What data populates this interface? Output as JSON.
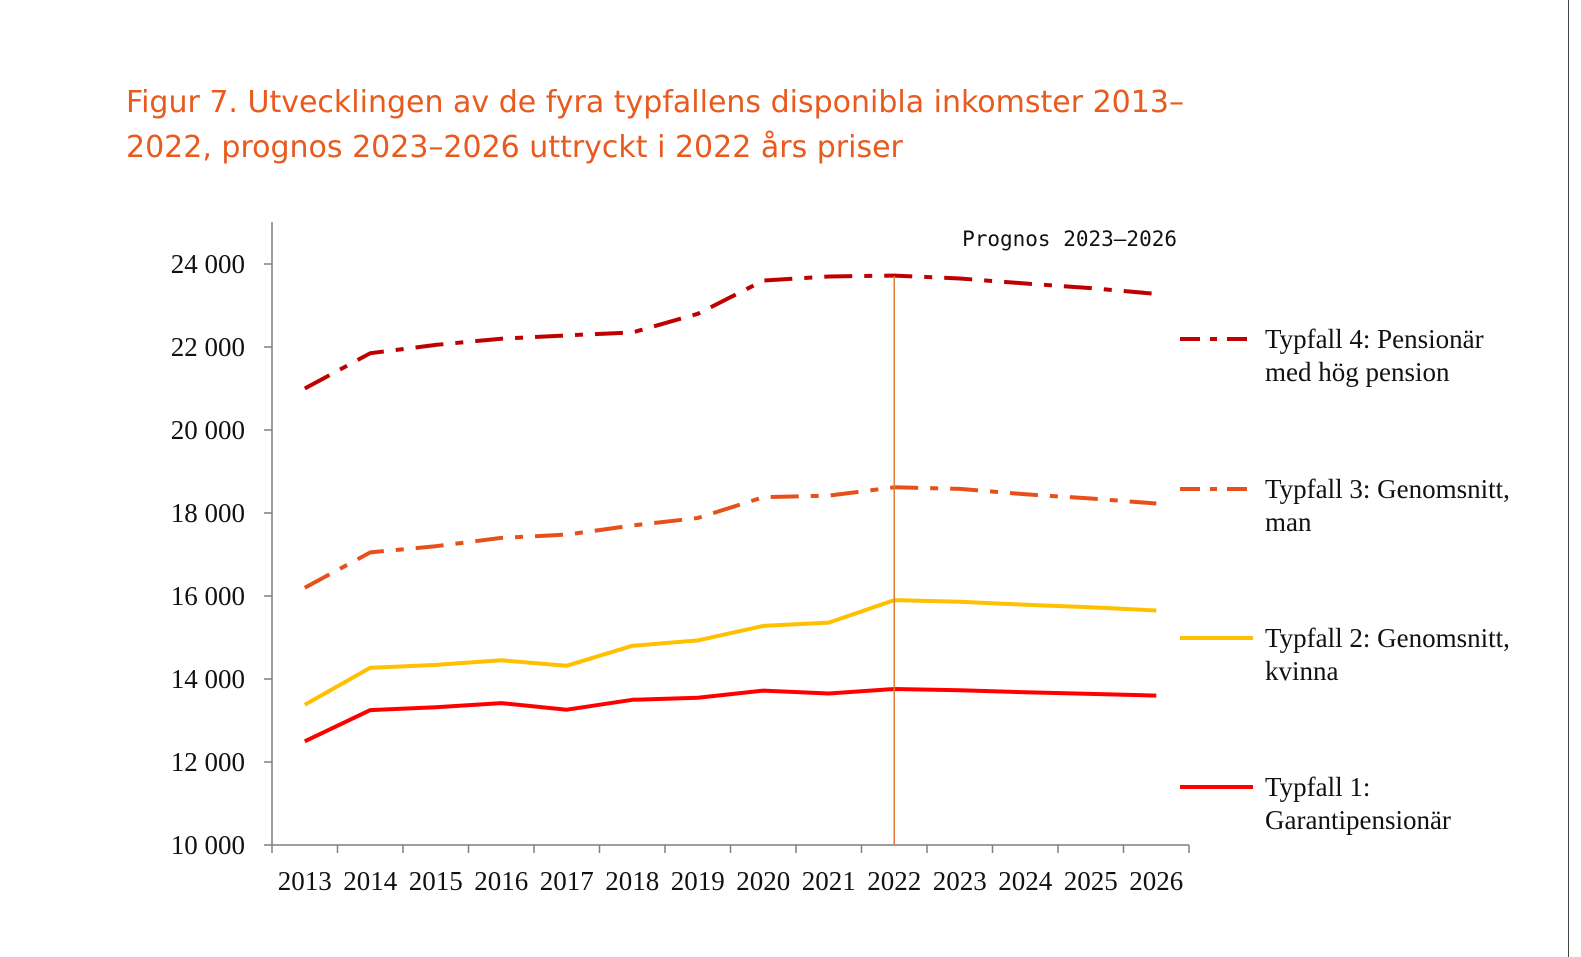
{
  "title_lines": [
    "Figur 7. Utvecklingen av de fyra typfallens disponibla inkomster 2013–",
    "2022, prognos 2023–2026 uttryckt i 2022 års priser"
  ],
  "chart_data": {
    "type": "line",
    "title": "Figur 7. Utvecklingen av de fyra typfallens disponibla inkomster 2013–2022, prognos 2023–2026 uttryckt i 2022 års priser",
    "categories": [
      "2013",
      "2014",
      "2015",
      "2016",
      "2017",
      "2018",
      "2019",
      "2020",
      "2021",
      "2022",
      "2023",
      "2024",
      "2025",
      "2026"
    ],
    "ylim": [
      10000,
      24000
    ],
    "yticks": [
      10000,
      12000,
      14000,
      16000,
      18000,
      20000,
      22000,
      24000
    ],
    "ytick_labels": [
      "10 000",
      "12 000",
      "14 000",
      "16 000",
      "18 000",
      "20 000",
      "22 000",
      "24 000"
    ],
    "grid": false,
    "legend_position": "right",
    "annotation": {
      "text": "Prognos 2023–2026",
      "at_category": "2022"
    },
    "series": [
      {
        "name": "Typfall 4: Pensionär med hög pension",
        "legend_lines": [
          "Typfall 4: Pensionär",
          "med hög pension"
        ],
        "style": "dashdot",
        "color": "#c00000",
        "values": [
          21000,
          21850,
          22050,
          22200,
          22280,
          22350,
          22800,
          23600,
          23700,
          23720,
          23650,
          23530,
          23420,
          23280
        ]
      },
      {
        "name": "Typfall 3: Genomsnitt, man",
        "legend_lines": [
          "Typfall 3: Genomsnitt,",
          "man"
        ],
        "style": "dashdot",
        "color": "#e8501a",
        "values": [
          16200,
          17050,
          17200,
          17400,
          17480,
          17700,
          17880,
          18380,
          18420,
          18620,
          18580,
          18450,
          18350,
          18230
        ]
      },
      {
        "name": "Typfall 2: Genomsnitt, kvinna",
        "legend_lines": [
          "Typfall 2: Genomsnitt,",
          "kvinna"
        ],
        "style": "solid",
        "color": "#ffc000",
        "values": [
          13380,
          14270,
          14340,
          14450,
          14320,
          14800,
          14930,
          15280,
          15360,
          15900,
          15860,
          15790,
          15730,
          15650
        ]
      },
      {
        "name": "Typfall 1: Garantipensionär",
        "legend_lines": [
          "Typfall 1:",
          "Garantipensionär"
        ],
        "style": "solid",
        "color": "#ff0000",
        "values": [
          12500,
          13250,
          13320,
          13420,
          13260,
          13500,
          13550,
          13720,
          13650,
          13760,
          13730,
          13680,
          13640,
          13600
        ]
      }
    ]
  }
}
